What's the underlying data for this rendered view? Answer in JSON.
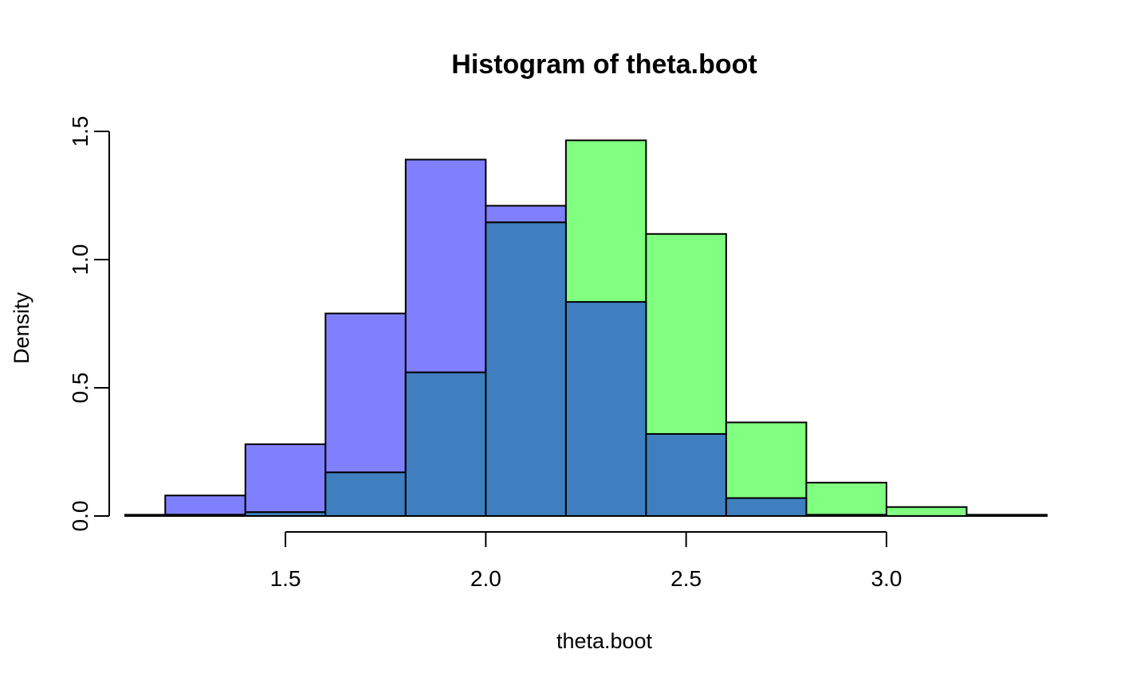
{
  "chart_data": {
    "type": "bar",
    "title": "Histogram of theta.boot",
    "xlabel": "theta.boot",
    "ylabel": "Density",
    "xlim": [
      1.1,
      3.4
    ],
    "ylim": [
      0,
      1.5
    ],
    "x_ticks": [
      1.5,
      2.0,
      2.5,
      3.0
    ],
    "x_tick_labels": [
      "1.5",
      "2.0",
      "2.5",
      "3.0"
    ],
    "y_ticks": [
      0.0,
      0.5,
      1.0,
      1.5
    ],
    "y_tick_labels": [
      "0.0",
      "0.5",
      "1.0",
      "1.5"
    ],
    "grid": false,
    "overlap_color": "#3f7fbf",
    "series": [
      {
        "color": "#8080ff",
        "bins": [
          {
            "x0": 1.0,
            "x1": 1.2,
            "y": 0.005
          },
          {
            "x0": 1.2,
            "x1": 1.4,
            "y": 0.08
          },
          {
            "x0": 1.4,
            "x1": 1.6,
            "y": 0.28
          },
          {
            "x0": 1.6,
            "x1": 1.8,
            "y": 0.79
          },
          {
            "x0": 1.8,
            "x1": 2.0,
            "y": 1.39
          },
          {
            "x0": 2.0,
            "x1": 2.2,
            "y": 1.21
          },
          {
            "x0": 2.2,
            "x1": 2.4,
            "y": 0.835
          },
          {
            "x0": 2.4,
            "x1": 2.6,
            "y": 0.32
          },
          {
            "x0": 2.6,
            "x1": 2.8,
            "y": 0.07
          },
          {
            "x0": 2.8,
            "x1": 3.0,
            "y": 0.005
          }
        ]
      },
      {
        "color": "#80ff80",
        "bins": [
          {
            "x0": 1.2,
            "x1": 1.4,
            "y": 0.005
          },
          {
            "x0": 1.4,
            "x1": 1.6,
            "y": 0.015
          },
          {
            "x0": 1.6,
            "x1": 1.8,
            "y": 0.17
          },
          {
            "x0": 1.8,
            "x1": 2.0,
            "y": 0.56
          },
          {
            "x0": 2.0,
            "x1": 2.2,
            "y": 1.145
          },
          {
            "x0": 2.2,
            "x1": 2.4,
            "y": 1.465
          },
          {
            "x0": 2.4,
            "x1": 2.6,
            "y": 1.1
          },
          {
            "x0": 2.6,
            "x1": 2.8,
            "y": 0.365
          },
          {
            "x0": 2.8,
            "x1": 3.0,
            "y": 0.13
          },
          {
            "x0": 3.0,
            "x1": 3.2,
            "y": 0.035
          },
          {
            "x0": 3.2,
            "x1": 3.4,
            "y": 0.005
          }
        ]
      }
    ]
  }
}
